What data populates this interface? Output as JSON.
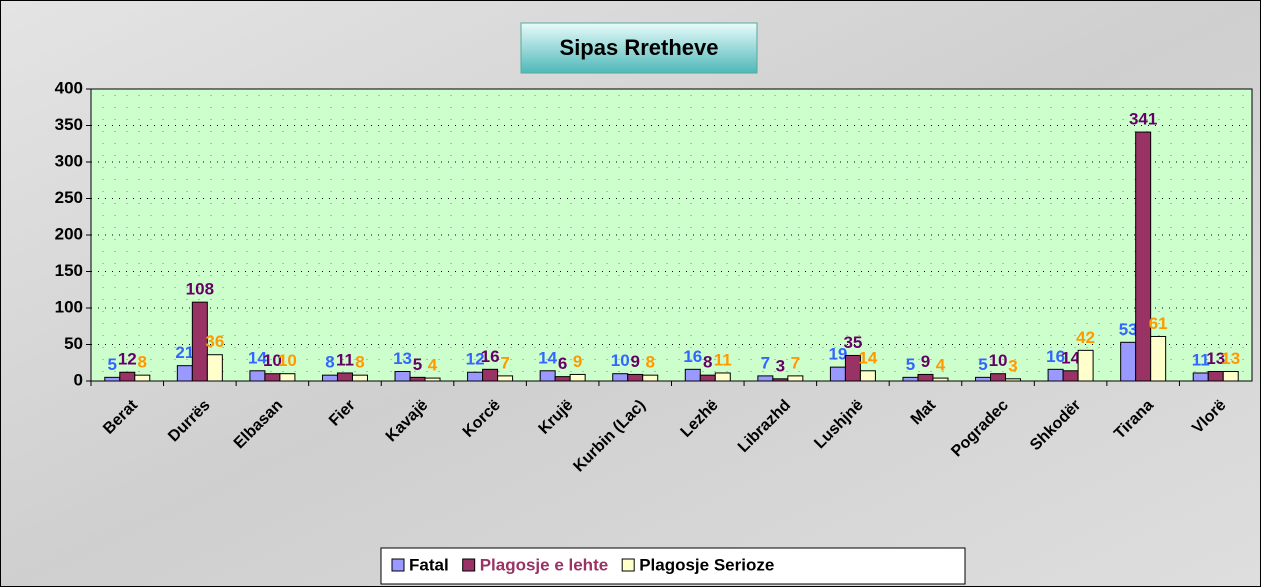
{
  "chart_data": {
    "type": "bar",
    "title": "Sipas Rretheve",
    "categories": [
      "Berat",
      "Durrës",
      "Elbasan",
      "Fier",
      "Kavajë",
      "Korcë",
      "Krujë",
      "Kurbin (Lac)",
      "Lezhë",
      "Librazhd",
      "Lushjnë",
      "Mat",
      "Pogradec",
      "Shkodër",
      "Tirana",
      "Vlorë"
    ],
    "series": [
      {
        "name": "Fatal",
        "color": "#9999ff",
        "label_color": "#3366ff",
        "values": [
          5,
          21,
          14,
          8,
          13,
          12,
          14,
          10,
          16,
          7,
          19,
          5,
          5,
          16,
          53,
          11
        ]
      },
      {
        "name": "Plagosje e lehte",
        "color": "#993366",
        "label_color": "#660066",
        "values": [
          12,
          108,
          10,
          11,
          5,
          16,
          6,
          9,
          8,
          3,
          35,
          9,
          10,
          14,
          341,
          13
        ]
      },
      {
        "name": "Plagosje Serioze",
        "color": "#ffffcc",
        "label_color": "#ff9900",
        "values": [
          8,
          36,
          10,
          8,
          4,
          7,
          9,
          8,
          11,
          7,
          14,
          4,
          3,
          42,
          61,
          13
        ]
      }
    ],
    "ylim": [
      0,
      400
    ],
    "yticks": [
      0,
      50,
      100,
      150,
      200,
      250,
      300,
      350,
      400
    ],
    "grid": true,
    "legend": "bottom"
  }
}
